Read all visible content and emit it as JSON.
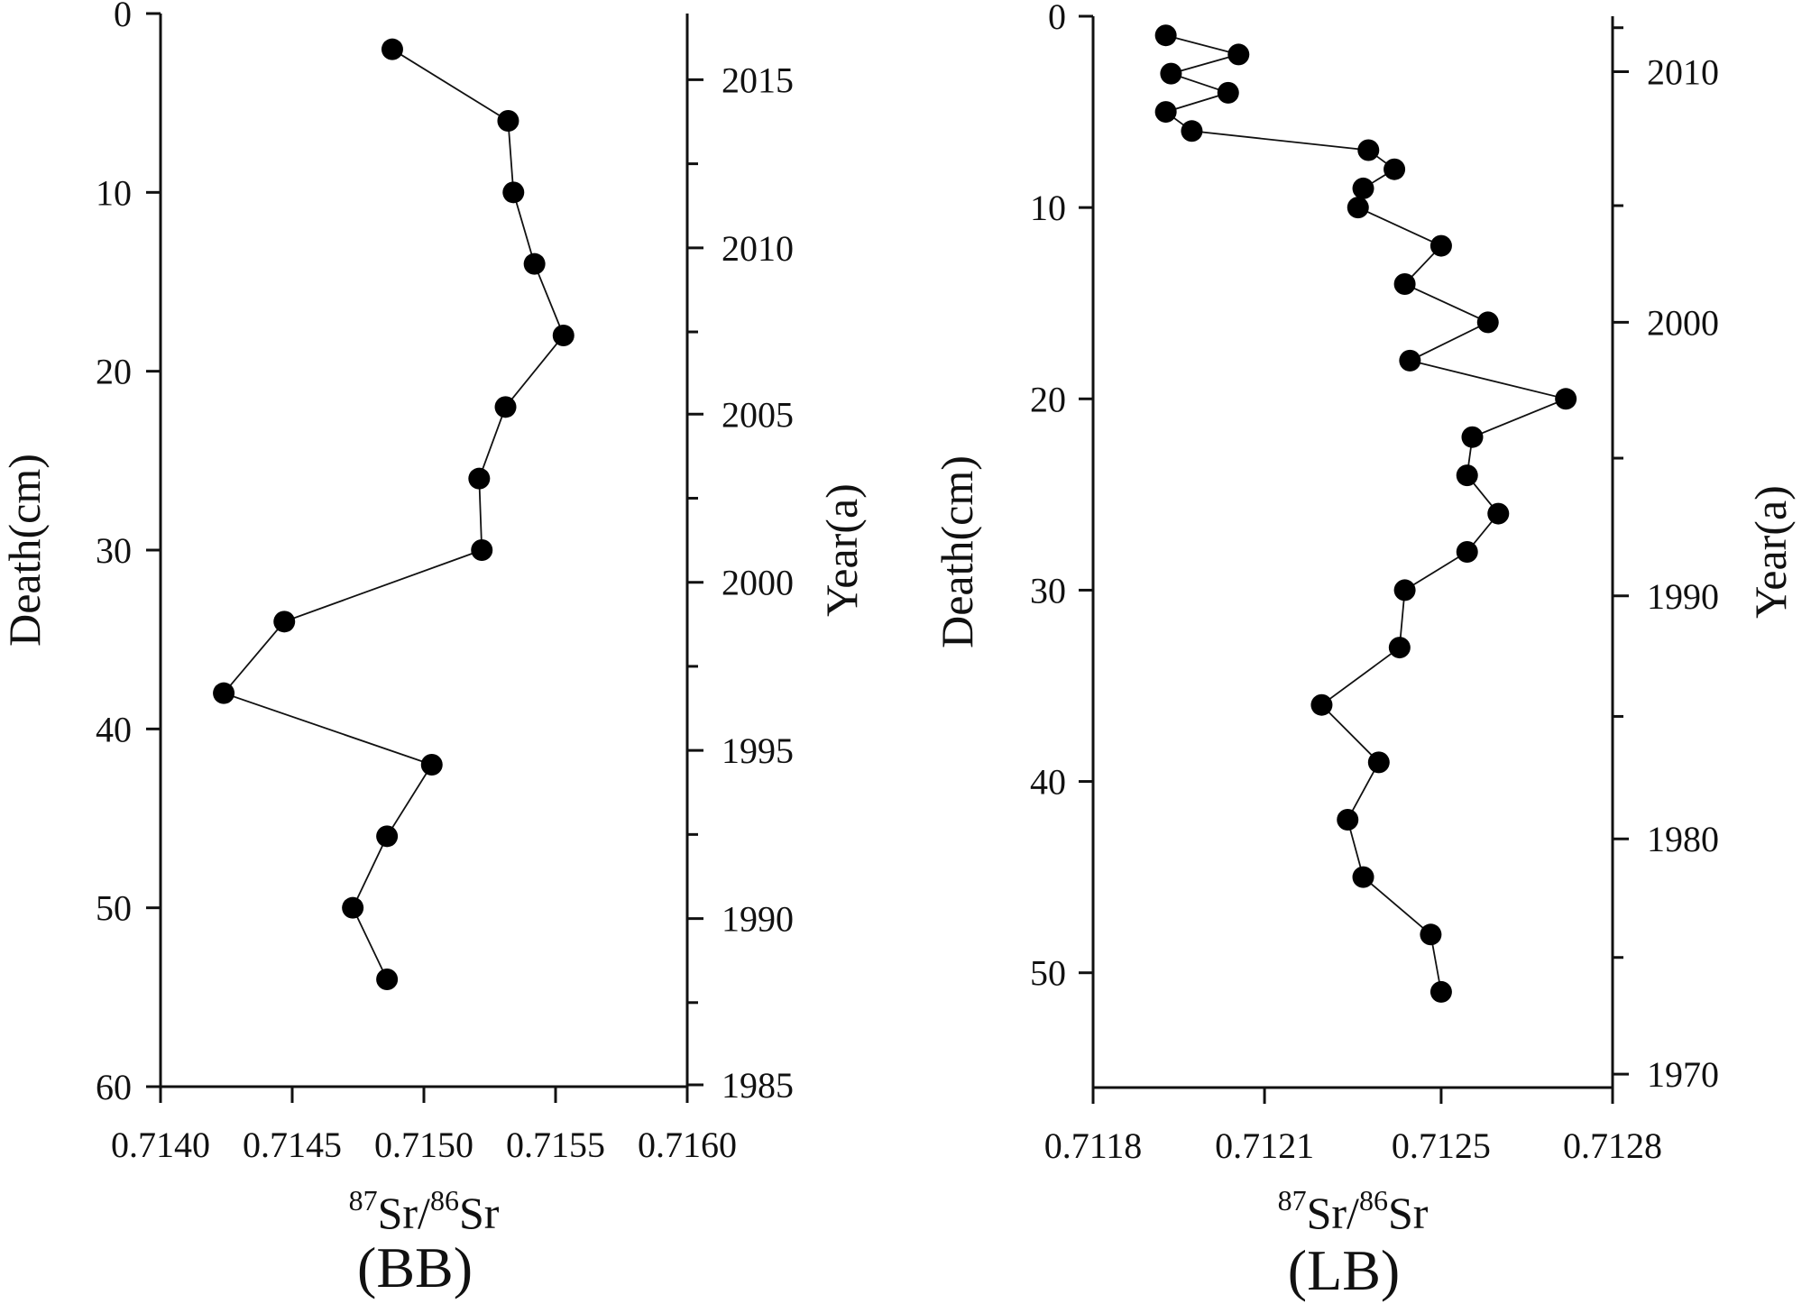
{
  "chart_data": [
    {
      "type": "line",
      "panel_label": "(BB)",
      "ylabel": "Death(cm)",
      "y2label": "Year(a)",
      "xlabel": {
        "sup1": "87",
        "base1": "Sr/",
        "sup2": "86",
        "base2": "Sr"
      },
      "xlim": [
        0.714,
        0.716
      ],
      "ylim": [
        0,
        60
      ],
      "x_ticks": [
        "0.7140",
        "0.7145",
        "0.7150",
        "0.7155",
        "0.7160"
      ],
      "y_ticks": [
        "0",
        "10",
        "20",
        "30",
        "40",
        "50",
        "60"
      ],
      "y2_ticks": [
        "2015",
        "2010",
        "2005",
        "2000",
        "1995",
        "1990",
        "1985"
      ],
      "y2_positions": [
        3.7,
        13.1,
        22.4,
        31.8,
        41.2,
        50.6,
        59.9
      ],
      "y2_minor_positions": [
        8.4,
        17.8,
        27.1,
        36.5,
        45.9,
        55.3
      ],
      "series": [
        {
          "name": "BB",
          "x": [
            0.71488,
            0.71532,
            0.71534,
            0.71542,
            0.71553,
            0.71531,
            0.71521,
            0.71522,
            0.71447,
            0.71424,
            0.71503,
            0.71486,
            0.71473,
            0.71486
          ],
          "y": [
            2,
            6,
            10,
            14,
            18,
            22,
            26,
            30,
            34,
            38,
            42,
            46,
            50,
            54
          ]
        }
      ]
    },
    {
      "type": "line",
      "panel_label": "(LB)",
      "ylabel": "Death(cm)",
      "y2label": "Year(a)",
      "xlabel": {
        "sup1": "87",
        "base1": "Sr/",
        "sup2": "86",
        "base2": "Sr"
      },
      "xlim": [
        0.7118,
        0.7128
      ],
      "ylim": [
        0,
        56
      ],
      "x_ticks": [
        "0.7118",
        "0.7121",
        "0.7125",
        "0.7128"
      ],
      "x_tick_values": [
        0.7118,
        0.71213,
        0.71247,
        0.7128
      ],
      "y_ticks": [
        "0",
        "10",
        "20",
        "30",
        "40",
        "50"
      ],
      "y2_ticks": [
        "2010",
        "2000",
        "1990",
        "1980",
        "1970"
      ],
      "y2_positions": [
        2.9,
        16.0,
        30.3,
        43.0,
        55.3
      ],
      "y2_minor_positions": [
        0.6,
        9.9,
        23.1,
        36.6,
        49.2
      ],
      "series": [
        {
          "name": "LB",
          "x": [
            0.71194,
            0.71208,
            0.71195,
            0.71206,
            0.71194,
            0.71199,
            0.71233,
            0.71238,
            0.71232,
            0.71231,
            0.71247,
            0.7124,
            0.71256,
            0.71241,
            0.71271,
            0.71253,
            0.71252,
            0.71258,
            0.71252,
            0.7124,
            0.71239,
            0.71224,
            0.71235,
            0.71229,
            0.71232,
            0.71245,
            0.71247
          ],
          "y": [
            1,
            2,
            3,
            4,
            5,
            6,
            7,
            8,
            9,
            10,
            12,
            14,
            16,
            18,
            20,
            22,
            24,
            26,
            28,
            30,
            33,
            36,
            39,
            42,
            45,
            48,
            51
          ]
        }
      ]
    }
  ]
}
